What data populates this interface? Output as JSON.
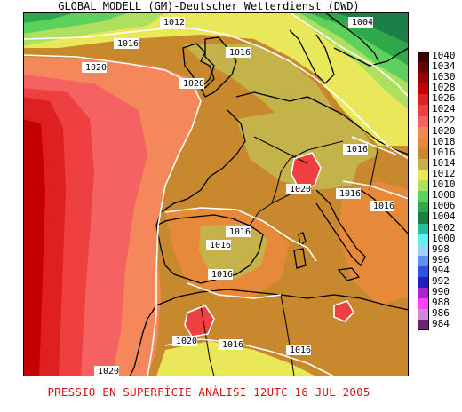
{
  "header": {
    "title": "GLOBAL MODELL (GM)-Deutscher Wetterdienst (DWD)"
  },
  "footer": {
    "caption": "PRESSIÓ EN SUPERFÍCIE    ANÀLISI 12UTC 16 JUL 2005"
  },
  "legend": [
    {
      "label": "1040",
      "color": "#3a0000"
    },
    {
      "label": "1034",
      "color": "#6a0000"
    },
    {
      "label": "1030",
      "color": "#9a0000"
    },
    {
      "label": "1028",
      "color": "#c40000"
    },
    {
      "label": "1026",
      "color": "#de2020"
    },
    {
      "label": "1024",
      "color": "#ee4040"
    },
    {
      "label": "1022",
      "color": "#f46262"
    },
    {
      "label": "1020",
      "color": "#f5885a"
    },
    {
      "label": "1018",
      "color": "#e68a3a"
    },
    {
      "label": "1016",
      "color": "#c8882e"
    },
    {
      "label": "1014",
      "color": "#c4b24a"
    },
    {
      "label": "1012",
      "color": "#e8e85a"
    },
    {
      "label": "1010",
      "color": "#aee060"
    },
    {
      "label": "1008",
      "color": "#5ed05e"
    },
    {
      "label": "1006",
      "color": "#2ea84a"
    },
    {
      "label": "1004",
      "color": "#1a8048"
    },
    {
      "label": "1002",
      "color": "#20c0a0"
    },
    {
      "label": "1000",
      "color": "#60f0f0"
    },
    {
      "label": "998",
      "color": "#a0d0ff"
    },
    {
      "label": "996",
      "color": "#6090f0"
    },
    {
      "label": "994",
      "color": "#3050e0"
    },
    {
      "label": "992",
      "color": "#2020c0"
    },
    {
      "label": "990",
      "color": "#b020d0"
    },
    {
      "label": "988",
      "color": "#ff40ff"
    },
    {
      "label": "986",
      "color": "#d088d8"
    },
    {
      "label": "984",
      "color": "#702070"
    }
  ],
  "isobar_labels": [
    {
      "text": "1012"
    },
    {
      "text": "1004"
    },
    {
      "text": "1016"
    },
    {
      "text": "1016"
    },
    {
      "text": "1020"
    },
    {
      "text": "1020"
    },
    {
      "text": "1016"
    },
    {
      "text": "1020"
    },
    {
      "text": "1016"
    },
    {
      "text": "1016"
    },
    {
      "text": "1016"
    },
    {
      "text": "1016"
    },
    {
      "text": "1016"
    },
    {
      "text": "1020"
    },
    {
      "text": "1016"
    },
    {
      "text": "1016"
    },
    {
      "text": "1020"
    }
  ]
}
